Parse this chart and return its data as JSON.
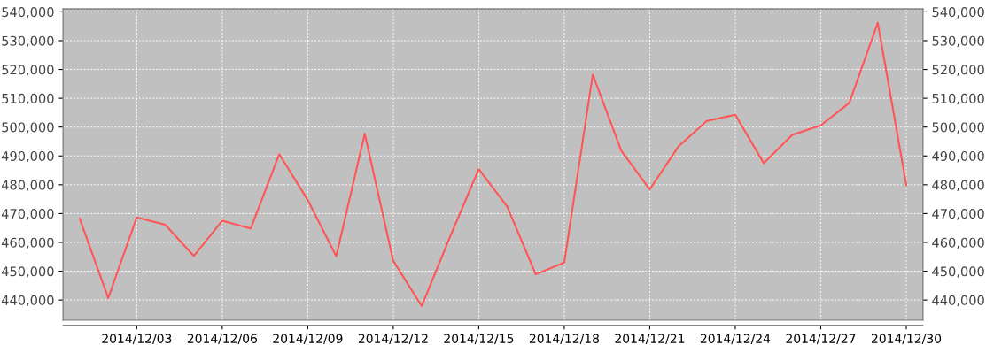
{
  "chart_data": {
    "type": "line",
    "x": [
      "2014-12-01",
      "2014-12-02",
      "2014-12-03",
      "2014-12-04",
      "2014-12-05",
      "2014-12-06",
      "2014-12-07",
      "2014-12-08",
      "2014-12-09",
      "2014-12-10",
      "2014-12-11",
      "2014-12-12",
      "2014-12-13",
      "2014-12-14",
      "2014-12-15",
      "2014-12-16",
      "2014-12-17",
      "2014-12-18",
      "2014-12-19",
      "2014-12-20",
      "2014-12-21",
      "2014-12-22",
      "2014-12-23",
      "2014-12-24",
      "2014-12-25",
      "2014-12-26",
      "2014-12-27",
      "2014-12-28",
      "2014-12-29",
      "2014-12-30"
    ],
    "series": [
      {
        "color": "#ff5555",
        "values": [
          468200,
          440700,
          468700,
          466100,
          455300,
          467500,
          464800,
          490600,
          474700,
          455200,
          497700,
          453600,
          437900,
          462100,
          485400,
          472400,
          448900,
          453000,
          518200,
          491800,
          478400,
          493200,
          502100,
          504300,
          487500,
          497300,
          500600,
          508400,
          536200,
          479900
        ]
      }
    ],
    "xlim": [
      "2014-11-30T10:00",
      "2014-12-30T14:00"
    ],
    "xticks": [
      {
        "value": "2014-12-03",
        "label": "2014/12/03"
      },
      {
        "value": "2014-12-06",
        "label": "2014/12/06"
      },
      {
        "value": "2014-12-09",
        "label": "2014/12/09"
      },
      {
        "value": "2014-12-12",
        "label": "2014/12/12"
      },
      {
        "value": "2014-12-15",
        "label": "2014/12/15"
      },
      {
        "value": "2014-12-18",
        "label": "2014/12/18"
      },
      {
        "value": "2014-12-21",
        "label": "2014/12/21"
      },
      {
        "value": "2014-12-24",
        "label": "2014/12/24"
      },
      {
        "value": "2014-12-27",
        "label": "2014/12/27"
      },
      {
        "value": "2014-12-30",
        "label": "2014/12/30"
      }
    ],
    "ylim": [
      433000,
      541000
    ],
    "yticks": [
      {
        "value": 440000,
        "label": "440,000"
      },
      {
        "value": 450000,
        "label": "450,000"
      },
      {
        "value": 460000,
        "label": "460,000"
      },
      {
        "value": 470000,
        "label": "470,000"
      },
      {
        "value": 480000,
        "label": "480,000"
      },
      {
        "value": 490000,
        "label": "490,000"
      },
      {
        "value": 500000,
        "label": "500,000"
      },
      {
        "value": 510000,
        "label": "510,000"
      },
      {
        "value": 520000,
        "label": "520,000"
      },
      {
        "value": 530000,
        "label": "530,000"
      },
      {
        "value": 540000,
        "label": "540,000"
      }
    ],
    "y2lim": [
      433000,
      541000
    ],
    "y2ticks": [
      {
        "value": 440000,
        "label": "440,000"
      },
      {
        "value": 450000,
        "label": "450,000"
      },
      {
        "value": 460000,
        "label": "460,000"
      },
      {
        "value": 470000,
        "label": "470,000"
      },
      {
        "value": 480000,
        "label": "480,000"
      },
      {
        "value": 490000,
        "label": "490,000"
      },
      {
        "value": 500000,
        "label": "500,000"
      },
      {
        "value": 510000,
        "label": "510,000"
      },
      {
        "value": 520000,
        "label": "520,000"
      },
      {
        "value": 530000,
        "label": "530,000"
      },
      {
        "value": 540000,
        "label": "540,000"
      }
    ],
    "grid": true,
    "marker": "none",
    "line_style": "solid"
  }
}
